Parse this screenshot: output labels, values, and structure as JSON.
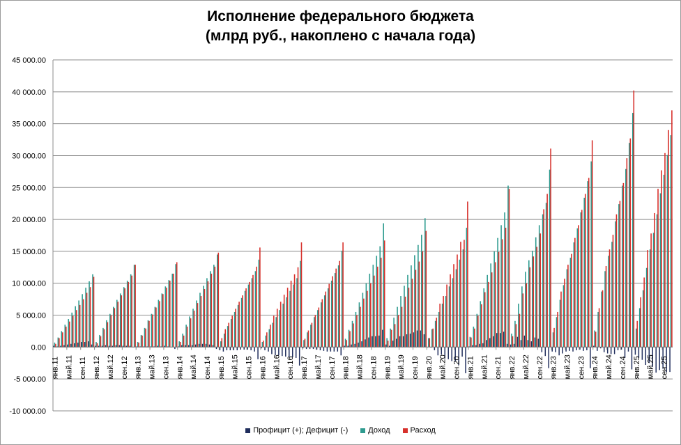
{
  "chart_data": {
    "type": "bar",
    "title": "Исполнение федерального бюджета",
    "subtitle": "(млрд руб., накоплено с начала года)",
    "ylim": [
      -10000,
      45000
    ],
    "yticks": [
      "45 000.00",
      "40 000.00",
      "35 000.00",
      "30 000.00",
      "25 000.00",
      "20 000.00",
      "15 000.00",
      "10 000.00",
      "5 000.00",
      "0.00",
      "-5 000.00",
      "-10 000.00"
    ],
    "grid": true,
    "legend": "bottom",
    "x_labels": [
      "янв.11",
      "май.11",
      "сен.11",
      "янв.12",
      "май.12",
      "сен.12",
      "янв.13",
      "май.13",
      "сен.13",
      "янв.14",
      "май.14",
      "сен.14",
      "янв.15",
      "май.15",
      "сен.15",
      "янв.16",
      "май.16",
      "сен.16",
      "янв.17",
      "май.17",
      "сен.17",
      "янв.18",
      "май.18",
      "сен.18",
      "янв.19",
      "май.19",
      "сен.19",
      "янв.20",
      "май.20",
      "сен.20",
      "янв.21",
      "май.21",
      "сен.21",
      "янв.22",
      "май.22",
      "сен.22",
      "янв.23",
      "май.23",
      "сен.23",
      "янв.24",
      "май.24",
      "сен.24",
      "янв.25",
      "май.25",
      "сен.25"
    ],
    "colors": {
      "balance": "#1f2d5c",
      "revenue": "#2e9b8f",
      "expense": "#d7312c"
    },
    "series": [
      {
        "name": "Профицит (+); Дефицит (-)",
        "key": "balance"
      },
      {
        "name": "Доход",
        "key": "revenue"
      },
      {
        "name": "Расход",
        "key": "expense"
      }
    ],
    "years": [
      {
        "year": 2011,
        "revenue": [
          700,
          1500,
          2500,
          3500,
          4400,
          5400,
          6400,
          7300,
          8300,
          9300,
          10300,
          11400
        ],
        "expense": [
          500,
          1400,
          2300,
          3200,
          4000,
          4900,
          5800,
          6600,
          7500,
          8500,
          9400,
          11000
        ]
      },
      {
        "year": 2012,
        "revenue": [
          800,
          1900,
          3000,
          4200,
          5200,
          6300,
          7400,
          8400,
          9400,
          10400,
          11400,
          12900
        ],
        "expense": [
          600,
          1700,
          2800,
          3900,
          5000,
          6100,
          7100,
          8100,
          9200,
          10200,
          11200,
          12900
        ]
      },
      {
        "year": 2013,
        "revenue": [
          800,
          1900,
          3000,
          4200,
          5200,
          6300,
          7400,
          8400,
          9500,
          10500,
          11500,
          13000
        ],
        "expense": [
          700,
          1800,
          2900,
          4100,
          5100,
          6200,
          7200,
          8300,
          9300,
          10400,
          11500,
          13300
        ]
      },
      {
        "year": 2014,
        "revenue": [
          900,
          2100,
          3500,
          4800,
          6000,
          7300,
          8500,
          9600,
          10800,
          11900,
          12900,
          14500
        ],
        "expense": [
          800,
          1800,
          3200,
          4500,
          5700,
          6900,
          8000,
          9100,
          10300,
          11500,
          12600,
          14800
        ]
      },
      {
        "year": 2015,
        "revenue": [
          900,
          2100,
          3300,
          4400,
          5500,
          6600,
          7700,
          8800,
          9800,
          10800,
          11900,
          13700
        ],
        "expense": [
          1400,
          2800,
          3800,
          4900,
          6000,
          7100,
          8100,
          9200,
          10200,
          11300,
          12600,
          15600
        ]
      },
      {
        "year": 2016,
        "revenue": [
          800,
          1800,
          2800,
          3800,
          4700,
          5800,
          6800,
          7800,
          8800,
          9800,
          10800,
          13500
        ],
        "expense": [
          1000,
          2300,
          3500,
          4900,
          6000,
          7100,
          8200,
          9300,
          10400,
          11400,
          12500,
          16400
        ]
      },
      {
        "year": 2017,
        "revenue": [
          1100,
          2300,
          3500,
          4700,
          5800,
          7000,
          8100,
          9200,
          10400,
          11600,
          12800,
          15100
        ],
        "expense": [
          1300,
          2600,
          3800,
          5000,
          6200,
          7500,
          8700,
          9900,
          11100,
          12300,
          13500,
          16400
        ]
      },
      {
        "year": 2018,
        "revenue": [
          1300,
          2700,
          4100,
          5500,
          7000,
          8500,
          10000,
          11500,
          12900,
          14300,
          15800,
          19400
        ],
        "expense": [
          1100,
          2500,
          3700,
          5000,
          6300,
          7600,
          8800,
          10000,
          11200,
          12600,
          14000,
          16700
        ]
      },
      {
        "year": 2019,
        "revenue": [
          1400,
          2900,
          4600,
          6300,
          8000,
          9600,
          11300,
          12800,
          14400,
          16000,
          17600,
          20200
        ],
        "expense": [
          1000,
          2700,
          3600,
          5000,
          6300,
          7900,
          9300,
          10700,
          12100,
          13400,
          15000,
          18200
        ]
      },
      {
        "year": 2020,
        "revenue": [
          1400,
          2800,
          4100,
          5500,
          6800,
          8000,
          9500,
          10800,
          12200,
          13700,
          15300,
          18700
        ],
        "expense": [
          1400,
          2900,
          4600,
          6800,
          8000,
          9800,
          11400,
          13000,
          14500,
          16500,
          16800,
          22800
        ]
      },
      {
        "year": 2021,
        "revenue": [
          1600,
          3200,
          5200,
          7200,
          9200,
          11300,
          13100,
          15000,
          17100,
          19100,
          21100,
          25300
        ],
        "expense": [
          1500,
          2900,
          4900,
          6700,
          8600,
          10200,
          11700,
          13300,
          14900,
          16900,
          18700,
          24800
        ]
      },
      {
        "year": 2022,
        "revenue": [
          2100,
          4100,
          6800,
          9500,
          11800,
          13600,
          15100,
          17200,
          19100,
          20800,
          22600,
          27800
        ],
        "expense": [
          1700,
          3600,
          5200,
          8400,
          10000,
          12500,
          14200,
          15700,
          17800,
          21600,
          24000,
          31100
        ]
      },
      {
        "year": 2023,
        "revenue": [
          2300,
          4700,
          7400,
          9700,
          12200,
          14000,
          16400,
          18600,
          21100,
          23400,
          26000,
          29100
        ],
        "expense": [
          3000,
          5500,
          8700,
          10700,
          12900,
          14600,
          17100,
          19100,
          21500,
          24000,
          26500,
          32400
        ]
      },
      {
        "year": 2024,
        "revenue": [
          2600,
          5500,
          8700,
          11900,
          14300,
          16500,
          19700,
          22400,
          25300,
          27900,
          32000,
          36700
        ],
        "expense": [
          2400,
          6100,
          8900,
          12700,
          15300,
          17600,
          20800,
          22900,
          25700,
          29600,
          32700,
          40200
        ]
      },
      {
        "year": 2025,
        "revenue": [
          2900,
          6100,
          8900,
          12400,
          15300,
          17900,
          20800,
          24100,
          27000,
          30100,
          33200
        ],
        "expense": [
          4100,
          7800,
          10900,
          15200,
          17800,
          21000,
          24800,
          27700,
          30400,
          34000,
          37100
        ]
      }
    ]
  }
}
